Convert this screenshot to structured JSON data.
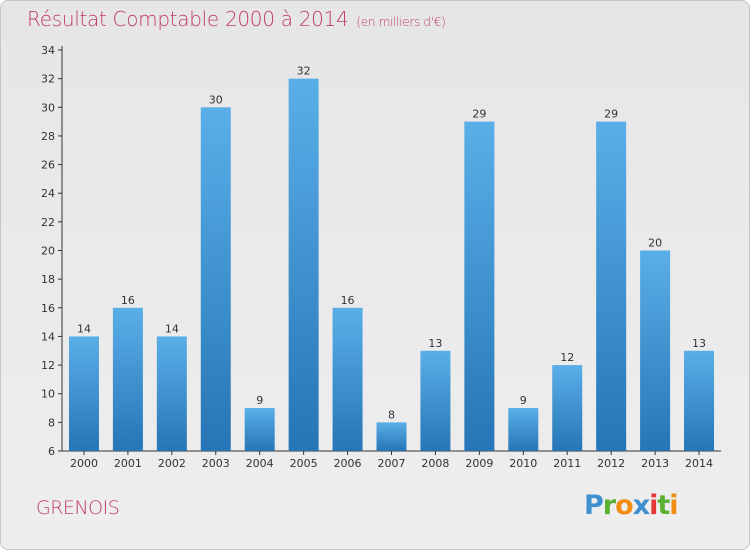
{
  "title": "Résultat Comptable 2000 à 2014",
  "unit": "(en milliers d'€)",
  "commune": "GRENOIS",
  "logo": {
    "letters": [
      "P",
      "r",
      "o",
      "x",
      "i",
      "t",
      "i"
    ],
    "colors": [
      "#3f90cf",
      "#5ab031",
      "#f28d14",
      "#3f90cf",
      "#e23838",
      "#5ab031",
      "#f28d14"
    ]
  },
  "colors": {
    "bar_light": "#5aafe8",
    "bar_dark": "#2675b6",
    "title": "#c03b6c",
    "axis": "#333333"
  },
  "chart_data": {
    "type": "bar",
    "title": "Résultat Comptable 2000 à 2014",
    "subtitle": "(en milliers d'€)",
    "categories": [
      "2000",
      "2001",
      "2002",
      "2003",
      "2004",
      "2005",
      "2006",
      "2007",
      "2008",
      "2009",
      "2010",
      "2011",
      "2012",
      "2013",
      "2014"
    ],
    "values": [
      14,
      16,
      14,
      30,
      9,
      32,
      16,
      8,
      13,
      29,
      9,
      12,
      29,
      20,
      13
    ],
    "ylim": [
      6,
      34
    ],
    "yticks": [
      6,
      8,
      10,
      12,
      14,
      16,
      18,
      20,
      22,
      24,
      26,
      28,
      30,
      32,
      34
    ],
    "grid": false,
    "legend": false,
    "data_labels": true
  }
}
